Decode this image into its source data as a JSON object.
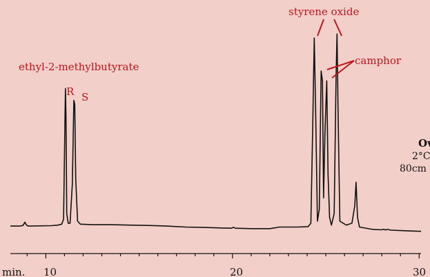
{
  "chart_data": {
    "type": "line",
    "xlabel": "min.",
    "x_ticks": [
      10,
      20,
      30
    ],
    "xlim": [
      8.1,
      30.1
    ],
    "ylim": [
      0,
      100
    ],
    "grid": false,
    "series": [
      {
        "points": [
          [
            8.1,
            3.5
          ],
          [
            8.6,
            3.5
          ],
          [
            8.78,
            3.8
          ],
          [
            8.88,
            5.5
          ],
          [
            8.95,
            4.2
          ],
          [
            9.05,
            3.5
          ],
          [
            10.3,
            3.7
          ],
          [
            10.65,
            4
          ],
          [
            10.85,
            4.5
          ],
          [
            10.95,
            7
          ],
          [
            11.02,
            55
          ],
          [
            11.05,
            74
          ],
          [
            11.08,
            60
          ],
          [
            11.12,
            10
          ],
          [
            11.2,
            5
          ],
          [
            11.3,
            5
          ],
          [
            11.42,
            25
          ],
          [
            11.5,
            68
          ],
          [
            11.55,
            66
          ],
          [
            11.6,
            28
          ],
          [
            11.7,
            6
          ],
          [
            11.85,
            4.5
          ],
          [
            12.5,
            4.2
          ],
          [
            13.5,
            4.2
          ],
          [
            14.5,
            4
          ],
          [
            15.5,
            3.8
          ],
          [
            16.5,
            3.5
          ],
          [
            17.5,
            3
          ],
          [
            18.5,
            2.8
          ],
          [
            19.5,
            2.5
          ],
          [
            19.95,
            2.4
          ],
          [
            20.05,
            2.9
          ],
          [
            20.15,
            2.4
          ],
          [
            21,
            2.2
          ],
          [
            22,
            2.2
          ],
          [
            22.3,
            2.6
          ],
          [
            22.5,
            3
          ],
          [
            23.5,
            3
          ],
          [
            24.05,
            3.2
          ],
          [
            24.2,
            5
          ],
          [
            24.3,
            55
          ],
          [
            24.38,
            100
          ],
          [
            24.45,
            65
          ],
          [
            24.55,
            6
          ],
          [
            24.65,
            12
          ],
          [
            24.75,
            83
          ],
          [
            24.82,
            78
          ],
          [
            24.88,
            18
          ],
          [
            24.95,
            50
          ],
          [
            25.05,
            78
          ],
          [
            25.12,
            30
          ],
          [
            25.2,
            8
          ],
          [
            25.3,
            4
          ],
          [
            25.45,
            10
          ],
          [
            25.55,
            80
          ],
          [
            25.6,
            102
          ],
          [
            25.66,
            60
          ],
          [
            25.75,
            6
          ],
          [
            26.1,
            4
          ],
          [
            26.4,
            5
          ],
          [
            26.55,
            14
          ],
          [
            26.62,
            26
          ],
          [
            26.7,
            8
          ],
          [
            26.8,
            3
          ],
          [
            27.5,
            1.8
          ],
          [
            28,
            1.6
          ],
          [
            28.1,
            1.9
          ],
          [
            28.2,
            1.5
          ],
          [
            28.3,
            1.8
          ],
          [
            28.5,
            1.4
          ],
          [
            29,
            1.2
          ],
          [
            29.5,
            1.0
          ],
          [
            30.1,
            0.8
          ]
        ]
      }
    ],
    "annotations": {
      "ethyl": "ethyl-2-methylbutyrate",
      "R": "R",
      "S": "S",
      "styrene": "styrene oxide",
      "camphor": "camphor"
    },
    "side_text": {
      "oven": "Ov",
      "rate": "2°C",
      "length": "80cm"
    }
  }
}
